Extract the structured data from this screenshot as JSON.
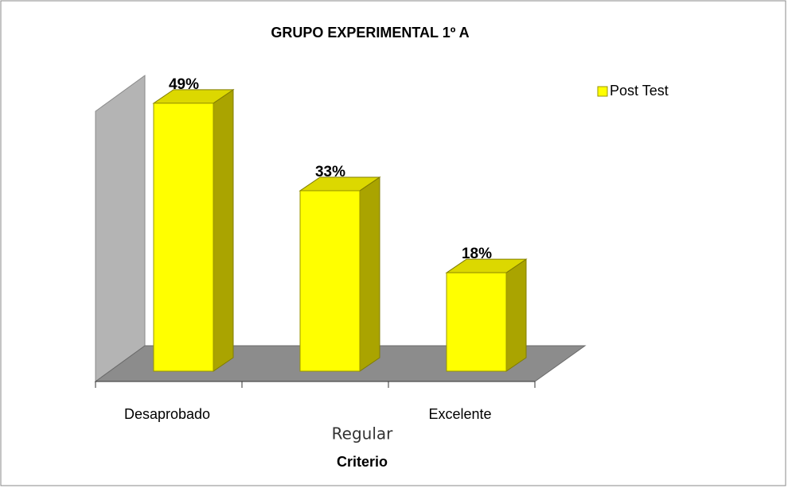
{
  "chart_data": {
    "type": "bar",
    "title": "GRUPO EXPERIMENTAL 1º A",
    "categories": [
      "Desaprobado",
      "Regular",
      "Excelente"
    ],
    "series": [
      {
        "name": "Post Test",
        "color": "#ffff00",
        "values": [
          49,
          33,
          18
        ],
        "value_labels": [
          "49%",
          "33%",
          "18%"
        ]
      }
    ],
    "x_label": "Criterio",
    "legend": "upper right"
  }
}
